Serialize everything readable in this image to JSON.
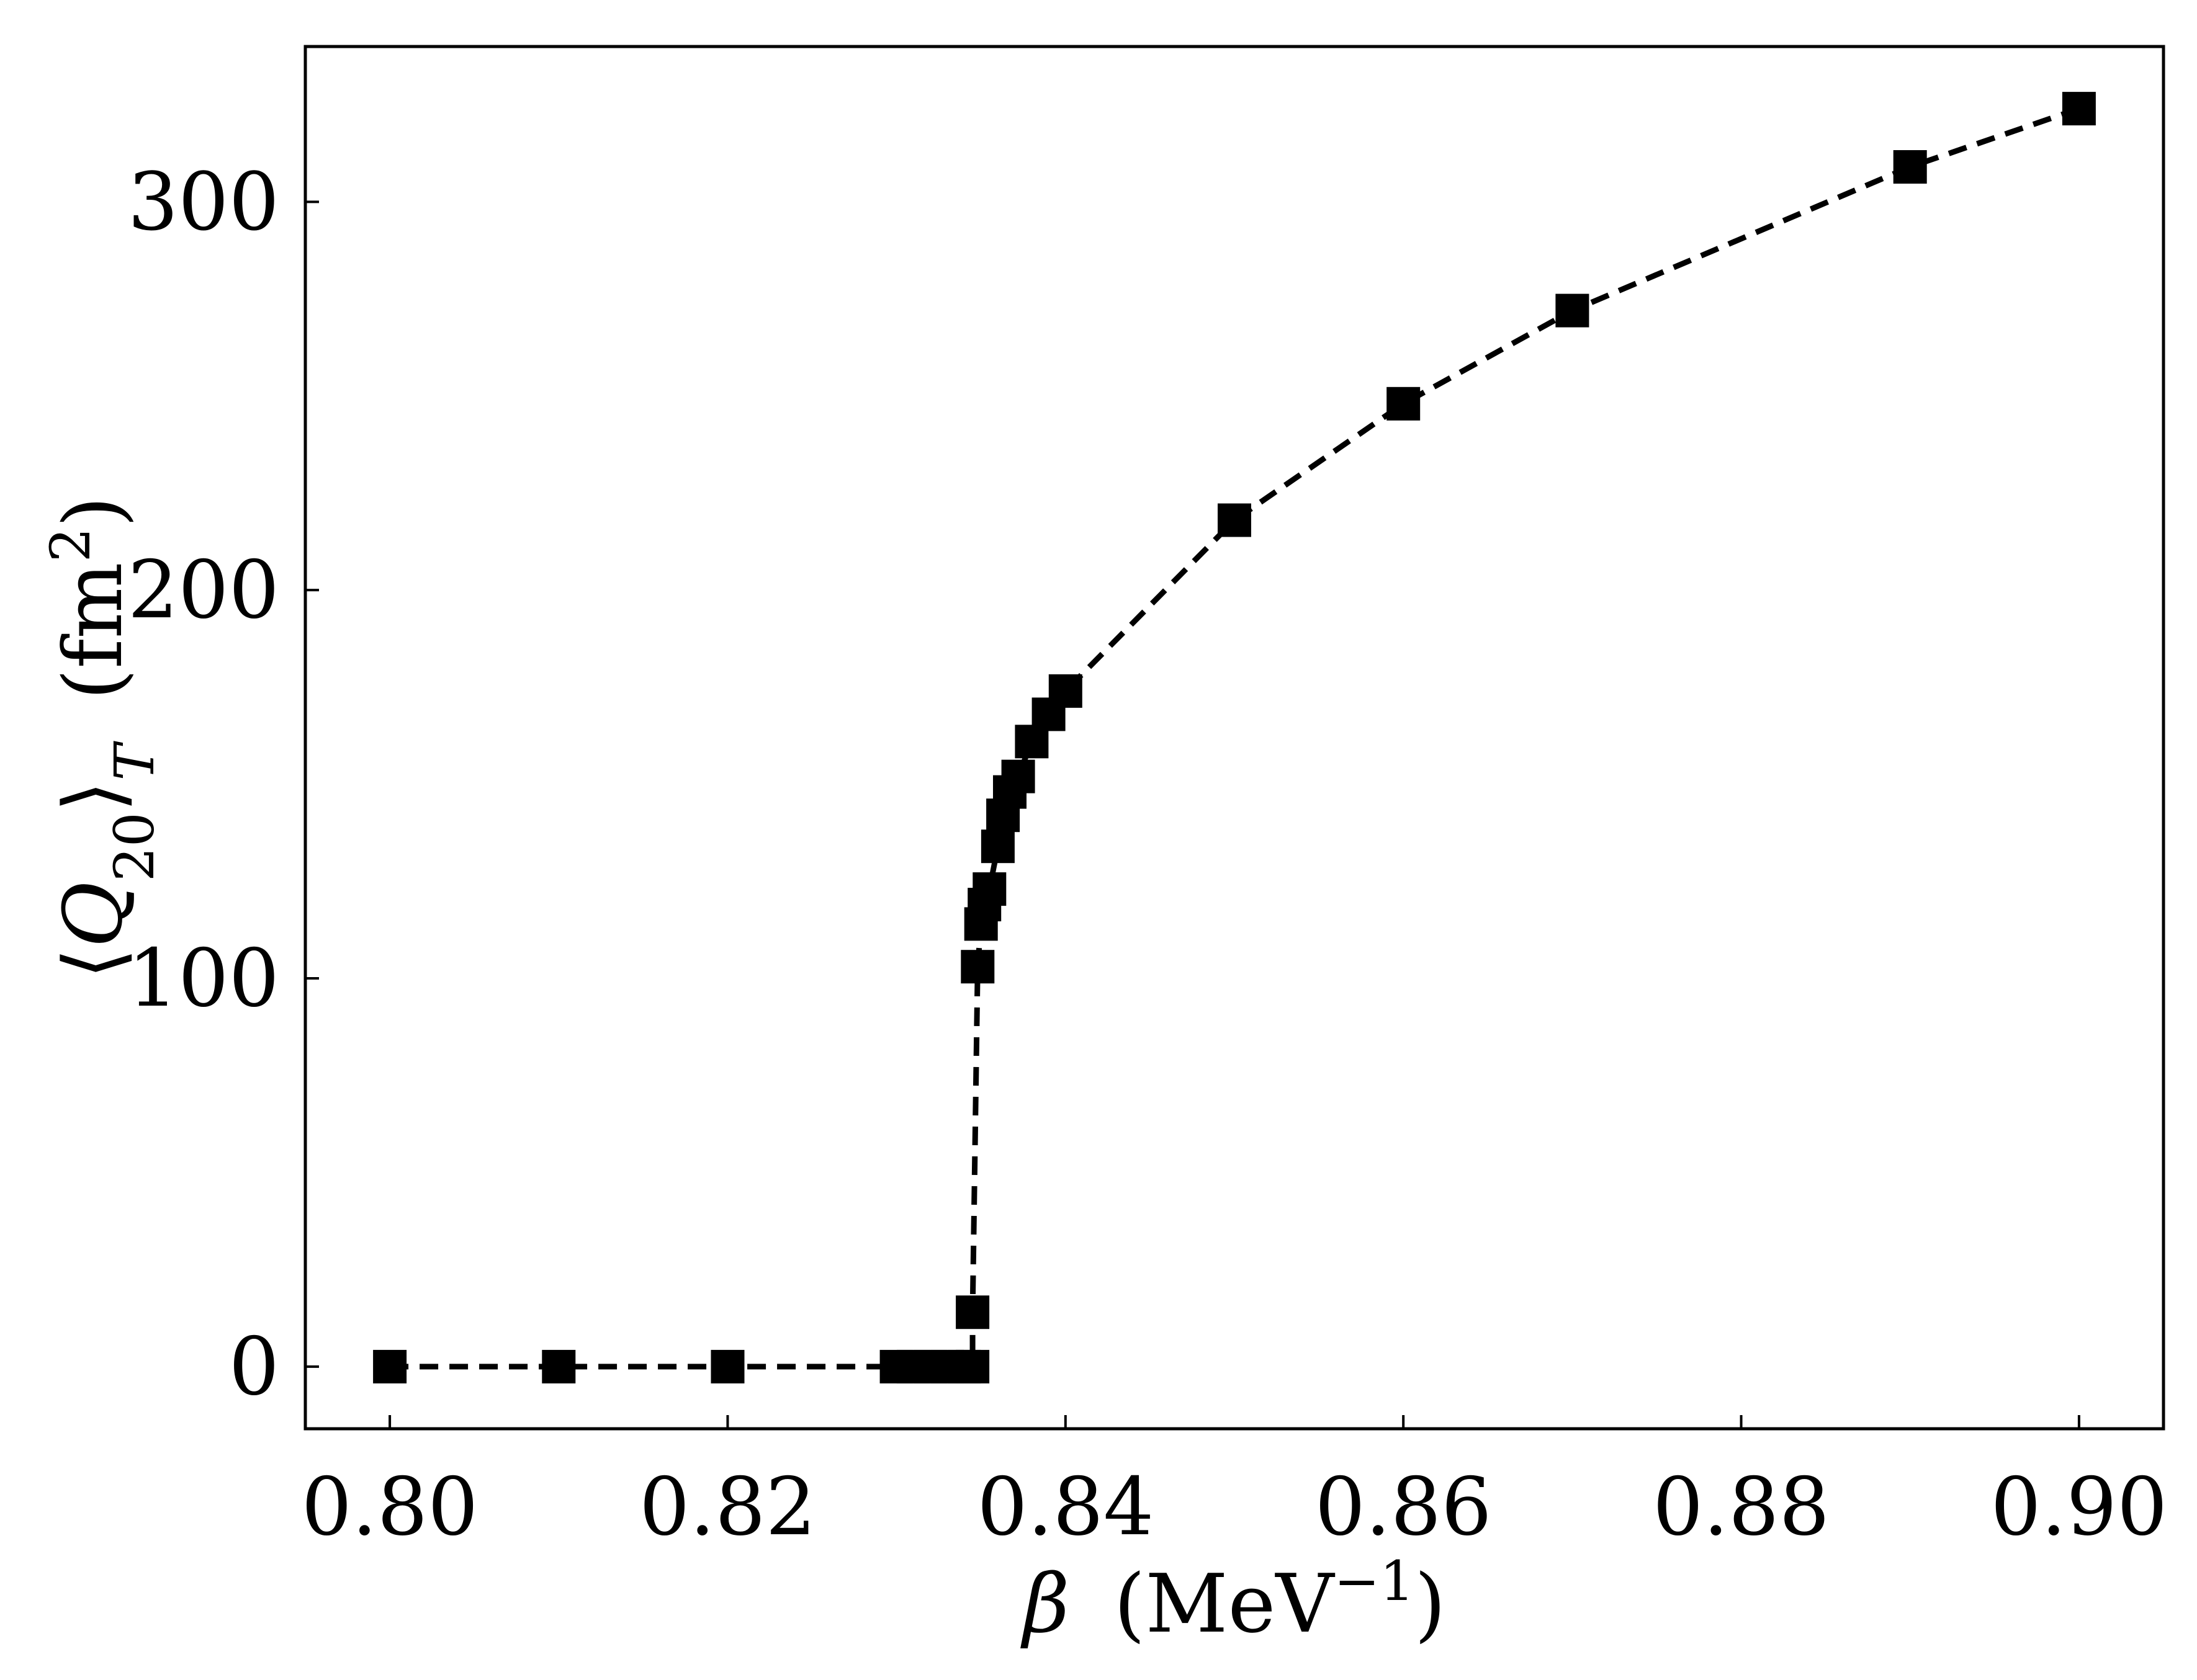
{
  "chart_data": {
    "type": "line",
    "title": "",
    "xlabel": {
      "symbol": "β",
      "unit_open": "(MeV",
      "unit_sup": "−1",
      "unit_close": ")"
    },
    "ylabel": {
      "open": "⟨",
      "symbol": "Q",
      "sub": "20",
      "close": "⟩",
      "sub2": "T",
      "unit_open": "(fm",
      "unit_sup": "2",
      "unit_close": ")"
    },
    "xlim": [
      0.795,
      0.905
    ],
    "ylim": [
      -16,
      340
    ],
    "xticks": [
      0.8,
      0.82,
      0.84,
      0.86,
      0.88,
      0.9
    ],
    "xtick_labels": [
      "0.80",
      "0.82",
      "0.84",
      "0.86",
      "0.88",
      "0.90"
    ],
    "yticks": [
      0,
      100,
      200,
      300
    ],
    "ytick_labels": [
      "0",
      "100",
      "200",
      "300"
    ],
    "grid": false,
    "legend": "none",
    "series": [
      {
        "line_style": "dashed",
        "marker": "square",
        "color": "#000000",
        "x": [
          0.8,
          0.81,
          0.82,
          0.83,
          0.831,
          0.832,
          0.833,
          0.834,
          0.8345,
          0.8345,
          0.8348,
          0.835,
          0.8352,
          0.8355,
          0.836,
          0.8363,
          0.8367,
          0.8372,
          0.838,
          0.839,
          0.84,
          0.85,
          0.86,
          0.87,
          0.89,
          0.9
        ],
        "y": [
          0,
          0,
          0,
          0,
          0,
          0,
          0,
          0,
          0,
          14,
          103,
          114,
          119,
          123,
          134,
          142,
          148,
          152,
          161,
          168,
          174,
          218,
          248,
          272,
          309,
          324
        ]
      }
    ]
  }
}
